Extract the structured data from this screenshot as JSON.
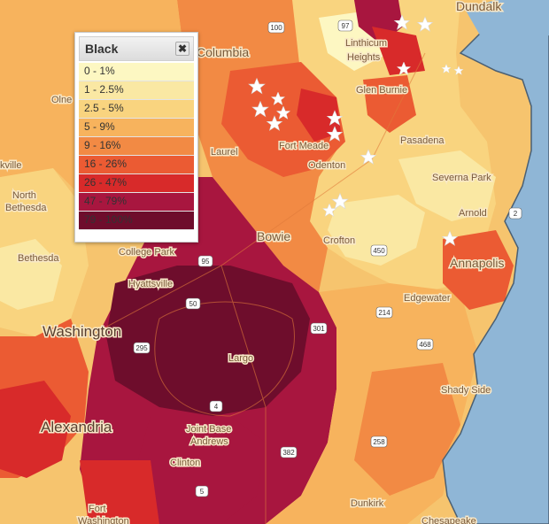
{
  "legend": {
    "title": "Black",
    "close_icon": "close-icon",
    "items": [
      {
        "label": "0 - 1%",
        "color": "#fdf7c2"
      },
      {
        "label": "1 - 2.5%",
        "color": "#fae8a3"
      },
      {
        "label": "2.5 - 5%",
        "color": "#f9d47f"
      },
      {
        "label": "5 - 9%",
        "color": "#f7b35d"
      },
      {
        "label": "9 - 16%",
        "color": "#f28a44"
      },
      {
        "label": "16 - 26%",
        "color": "#eb5b33"
      },
      {
        "label": "26 - 47%",
        "color": "#d82a2a"
      },
      {
        "label": "47 - 79%",
        "color": "#a8163f"
      },
      {
        "label": "79 - 100%",
        "color": "#6e0d2c"
      }
    ]
  },
  "places": {
    "dundalk": "Dundalk",
    "columbia": "Columbia",
    "linthicum": "Linthicum",
    "heights": "Heights",
    "glen_burnie": "Glen Burnie",
    "pasadena": "Pasadena",
    "laurel": "Laurel",
    "fort_meade": "Fort Meade",
    "odenton": "Odenton",
    "severna_park": "Severna Park",
    "arnold": "Arnold",
    "north_bethesda": "North\nBethesda",
    "north": "North",
    "bethesda_n": "Bethesda",
    "kville": "kville",
    "olne": "Olne",
    "bowie": "Bowie",
    "crofton": "Crofton",
    "annapolis": "Annapolis",
    "college_park": "College Park",
    "bethesda": "Bethesda",
    "hyattsville": "Hyattsville",
    "edgewater": "Edgewater",
    "washington": "Washington",
    "largo": "Largo",
    "shady_side": "Shady Side",
    "alexandria": "Alexandria",
    "joint_base": "Joint Base",
    "andrews": "Andrews",
    "clinton": "Clinton",
    "fort": "Fort",
    "washington_fort": "Washington",
    "dunkirk": "Dunkirk",
    "chesapeake": "Chesapeake"
  },
  "shields": [
    "100",
    "97",
    "50",
    "295",
    "301",
    "214",
    "468",
    "258",
    "4",
    "5",
    "450",
    "382",
    "2",
    "95"
  ],
  "colors": {
    "water": "#8fb6d6",
    "coast": "#4a5f73"
  }
}
